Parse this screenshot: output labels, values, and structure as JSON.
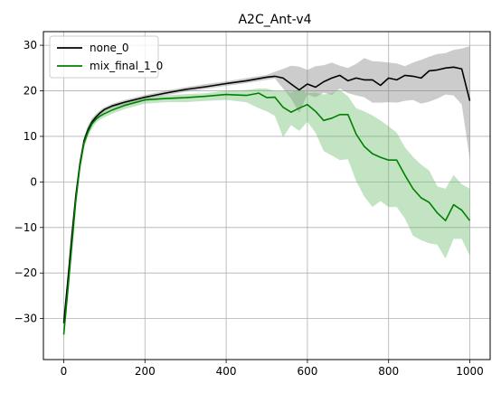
{
  "chart_data": {
    "type": "line",
    "title": "A2C_Ant-v4",
    "xlabel": "",
    "ylabel": "",
    "xlim": [
      -50,
      1050
    ],
    "ylim": [
      -39,
      33
    ],
    "xticks": [
      0,
      200,
      400,
      600,
      800,
      1000
    ],
    "yticks": [
      -30,
      -20,
      -10,
      0,
      10,
      20,
      30
    ],
    "grid": true,
    "legend_position": "top-left",
    "series": [
      {
        "name": "none_0",
        "color": "#000000",
        "band_color": "#808080",
        "x": [
          0,
          10,
          20,
          30,
          40,
          50,
          60,
          70,
          80,
          90,
          100,
          120,
          150,
          200,
          250,
          300,
          350,
          400,
          450,
          500,
          520,
          540,
          560,
          580,
          600,
          620,
          640,
          660,
          680,
          700,
          720,
          740,
          760,
          780,
          800,
          820,
          840,
          860,
          880,
          900,
          920,
          940,
          960,
          980,
          1000
        ],
        "y": [
          -31,
          -22,
          -12,
          -3,
          4,
          9,
          11.5,
          13.2,
          14.3,
          15.2,
          15.9,
          16.7,
          17.5,
          18.6,
          19.5,
          20.3,
          20.9,
          21.6,
          22.2,
          23,
          23.2,
          22.8,
          21.5,
          20.2,
          21.5,
          20.8,
          22,
          22.8,
          23.4,
          22.2,
          22.8,
          22.4,
          22.4,
          21.2,
          22.8,
          22.4,
          23.4,
          23.2,
          22.8,
          24.4,
          24.6,
          25,
          25.2,
          24.8,
          17.8
        ],
        "upper": [
          -29,
          -20,
          -10,
          -1.5,
          5,
          10,
          12.5,
          14,
          15,
          15.8,
          16.4,
          17.2,
          18,
          19.1,
          20,
          20.8,
          21.5,
          22.1,
          22.8,
          23.5,
          24.2,
          24.8,
          25.5,
          25.3,
          24.6,
          25.4,
          25.6,
          26.2,
          25.5,
          25,
          25.9,
          27.2,
          26.5,
          26.4,
          26.2,
          26,
          25.4,
          26.2,
          26.8,
          27.5,
          28.1,
          28.3,
          29,
          29.3,
          29.8
        ],
        "lower": [
          -33,
          -24,
          -14,
          -5,
          3,
          8,
          10.5,
          12.4,
          13.6,
          14.6,
          15.4,
          16.2,
          17,
          18.1,
          19,
          19.8,
          20.4,
          21.1,
          21.7,
          22.4,
          22.7,
          20.5,
          18.3,
          15.2,
          19.2,
          18.6,
          19.6,
          19.1,
          20.5,
          19.5,
          19,
          18.6,
          17.4,
          17.4,
          17.5,
          17.4,
          17.8,
          18,
          17.2,
          17.6,
          18.3,
          19.2,
          19,
          17,
          5
        ]
      },
      {
        "name": "mix_final_1_0",
        "color": "#008000",
        "band_color": "#66bb66",
        "x": [
          0,
          10,
          20,
          30,
          40,
          50,
          60,
          70,
          80,
          90,
          100,
          120,
          150,
          200,
          250,
          300,
          350,
          400,
          450,
          480,
          500,
          520,
          540,
          560,
          580,
          600,
          620,
          640,
          660,
          680,
          700,
          720,
          740,
          760,
          780,
          800,
          820,
          840,
          860,
          880,
          900,
          920,
          940,
          960,
          980,
          1000
        ],
        "y": [
          -33.5,
          -24,
          -14,
          -4,
          3.5,
          8.5,
          11,
          12.8,
          13.8,
          14.5,
          15,
          15.8,
          16.8,
          18,
          18.3,
          18.5,
          18.8,
          19.2,
          19,
          19.5,
          18.5,
          18.6,
          16.4,
          15.3,
          16.2,
          17,
          15.5,
          13.5,
          14,
          14.8,
          14.8,
          10.5,
          7.8,
          6.2,
          5.4,
          4.8,
          4.8,
          1.5,
          -1.5,
          -3.5,
          -4.5,
          -6.8,
          -8.5,
          -5,
          -6.2,
          -8.5
        ],
        "upper": [
          -32,
          -22,
          -12,
          -2.5,
          5,
          9.5,
          12,
          13.8,
          14.6,
          15.3,
          15.8,
          16.5,
          17.5,
          18.6,
          19,
          19.3,
          19.5,
          20,
          20.2,
          20.5,
          20.5,
          20,
          20,
          19.6,
          20.4,
          19.5,
          19.6,
          19.2,
          19.5,
          20.2,
          18.8,
          16.2,
          15.5,
          14.6,
          13.5,
          12.2,
          10.8,
          7.6,
          5.5,
          3.8,
          2.5,
          -1,
          -1.5,
          1.5,
          -0.5,
          -1.5
        ],
        "lower": [
          -35,
          -26,
          -16,
          -5.5,
          2,
          7.5,
          10,
          11.8,
          13,
          13.7,
          14.2,
          15,
          16,
          17.2,
          17.5,
          17.5,
          17.8,
          18,
          17.5,
          16.2,
          15.5,
          14.5,
          9.8,
          12.5,
          11.2,
          13.2,
          10.8,
          6.8,
          5.8,
          4.8,
          5,
          0.2,
          -3.2,
          -5.5,
          -4.2,
          -5.5,
          -5.5,
          -8,
          -11.8,
          -12.8,
          -13.5,
          -13.8,
          -16.8,
          -12.5,
          -12.5,
          -16.2
        ]
      }
    ]
  }
}
